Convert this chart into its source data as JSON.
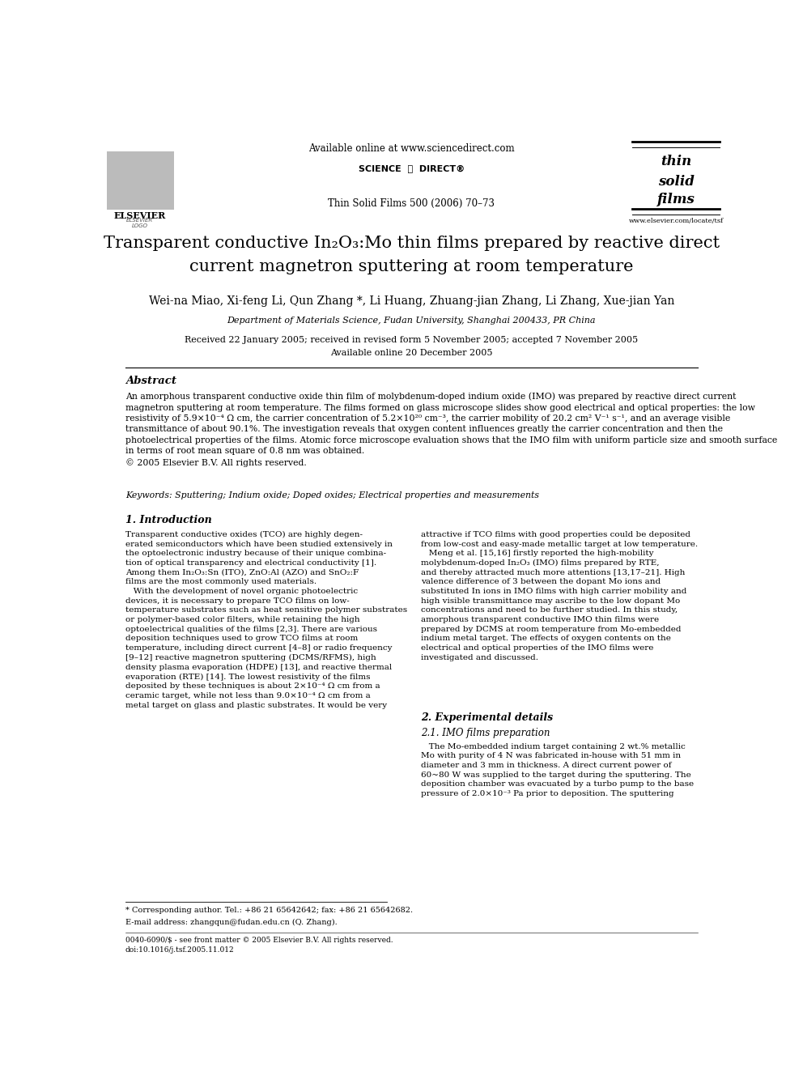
{
  "page_width": 9.92,
  "page_height": 13.23,
  "bg_color": "#ffffff",
  "header_available_online": "Available online at www.sciencedirect.com",
  "header_journal_ref": "Thin Solid Films 500 (2006) 70–73",
  "header_elsevier_label": "ELSEVIER",
  "header_website": "www.elsevier.com/locate/tsf",
  "title_line1": "Transparent conductive In₂O₃:Mo thin films prepared by reactive direct",
  "title_line2": "current magnetron sputtering at room temperature",
  "authors": "Wei-na Miao, Xi-feng Li, Qun Zhang *, Li Huang, Zhuang-jian Zhang, Li Zhang, Xue-jian Yan",
  "affiliation": "Department of Materials Science, Fudan University, Shanghai 200433, PR China",
  "received_line": "Received 22 January 2005; received in revised form 5 November 2005; accepted 7 November 2005",
  "available_online_line": "Available online 20 December 2005",
  "abstract_title": "Abstract",
  "abstract_text": "An amorphous transparent conductive oxide thin film of molybdenum-doped indium oxide (IMO) was prepared by reactive direct current\nmagnetron sputtering at room temperature. The films formed on glass microscope slides show good electrical and optical properties: the low\nresistivity of 5.9×10⁻⁴ Ω cm, the carrier concentration of 5.2×10²⁰ cm⁻³, the carrier mobility of 20.2 cm² V⁻¹ s⁻¹, and an average visible\ntransmittance of about 90.1%. The investigation reveals that oxygen content influences greatly the carrier concentration and then the\nphotoelectrical properties of the films. Atomic force microscope evaluation shows that the IMO film with uniform particle size and smooth surface\nin terms of root mean square of 0.8 nm was obtained.\n© 2005 Elsevier B.V. All rights reserved.",
  "keywords_label": "Keywords:",
  "keywords_text": "Sputtering; Indium oxide; Doped oxides; Electrical properties and measurements",
  "section1_title": "1. Introduction",
  "col1_intro": "Transparent conductive oxides (TCO) are highly degen-\nerated semiconductors which have been studied extensively in\nthe optoelectronic industry because of their unique combina-\ntion of optical transparency and electrical conductivity [1].\nAmong them In₂O₃:Sn (ITO), ZnO:Al (AZO) and SnO₂:F\nfilms are the most commonly used materials.\n   With the development of novel organic photoelectric\ndevices, it is necessary to prepare TCO films on low-\ntemperature substrates such as heat sensitive polymer substrates\nor polymer-based color filters, while retaining the high\noptoelectrical qualities of the films [2,3]. There are various\ndeposition techniques used to grow TCO films at room\ntemperature, including direct current [4–8] or radio frequency\n[9–12] reactive magnetron sputtering (DCMS/RFMS), high\ndensity plasma evaporation (HDPE) [13], and reactive thermal\nevaporation (RTE) [14]. The lowest resistivity of the films\ndeposited by these techniques is about 2×10⁻⁴ Ω cm from a\nceramic target, while not less than 9.0×10⁻⁴ Ω cm from a\nmetal target on glass and plastic substrates. It would be very",
  "col2_intro": "attractive if TCO films with good properties could be deposited\nfrom low-cost and easy-made metallic target at low temperature.\n   Meng et al. [15,16] firstly reported the high-mobility\nmolybdenum-doped In₂O₃ (IMO) films prepared by RTE,\nand thereby attracted much more attentions [13,17–21]. High\nvalence difference of 3 between the dopant Mo ions and\nsubstituted In ions in IMO films with high carrier mobility and\nhigh visible transmittance may ascribe to the low dopant Mo\nconcentrations and need to be further studied. In this study,\namorphous transparent conductive IMO thin films were\nprepared by DCMS at room temperature from Mo-embedded\nindium metal target. The effects of oxygen contents on the\nelectrical and optical properties of the IMO films were\ninvestigated and discussed.",
  "section2_title": "2. Experimental details",
  "section2_1_title": "2.1. IMO films preparation",
  "section2_1_text": "   The Mo-embedded indium target containing 2 wt.% metallic\nMo with purity of 4 N was fabricated in-house with 51 mm in\ndiameter and 3 mm in thickness. A direct current power of\n60~80 W was supplied to the target during the sputtering. The\ndeposition chamber was evacuated by a turbo pump to the base\npressure of 2.0×10⁻³ Pa prior to deposition. The sputtering",
  "footnote_star": "* Corresponding author. Tel.: +86 21 65642642; fax: +86 21 65642682.",
  "footnote_email": "E-mail address: zhangqun@fudan.edu.cn (Q. Zhang).",
  "footer_left": "0040-6090/$ - see front matter © 2005 Elsevier B.V. All rights reserved.",
  "footer_doi": "doi:10.1016/j.tsf.2005.11.012"
}
